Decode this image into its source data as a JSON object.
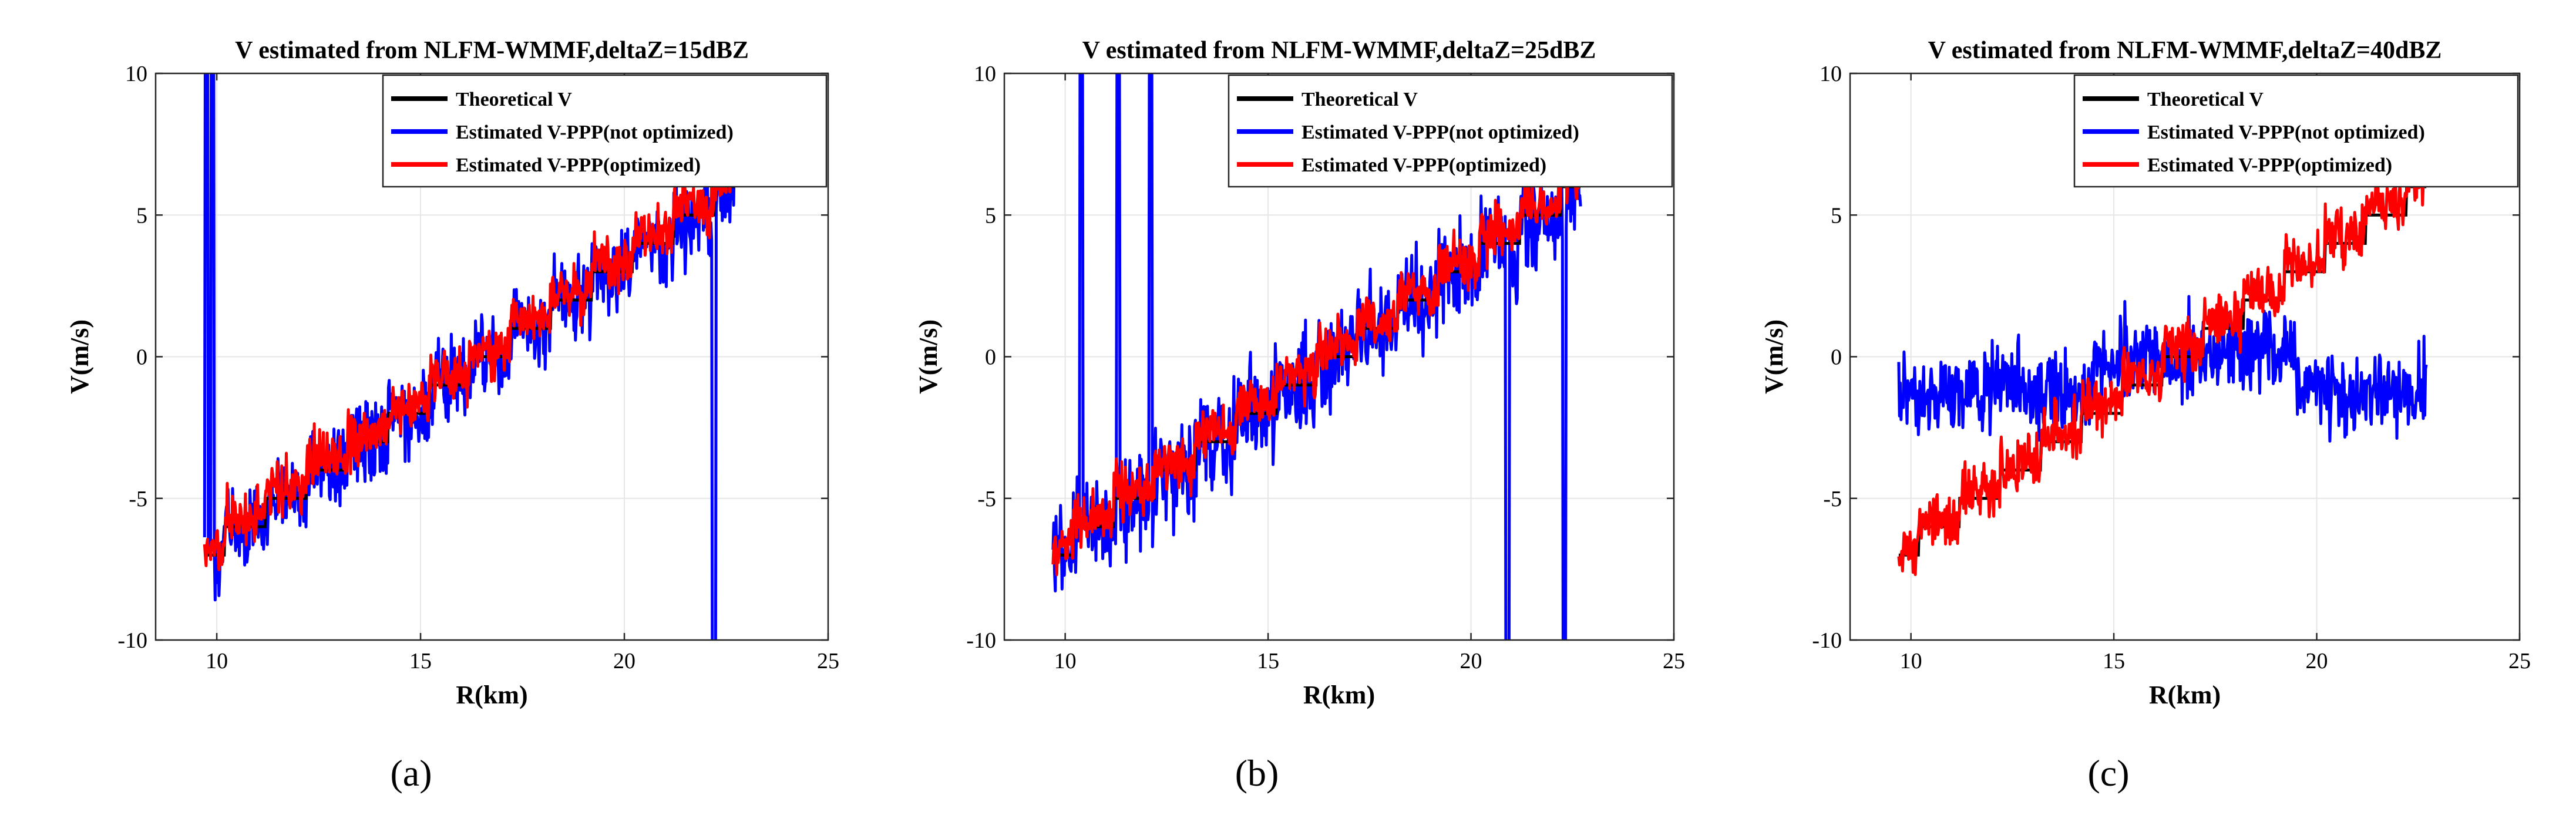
{
  "figure": {
    "panel_labels": [
      "(a)",
      "(b)",
      "(c)"
    ]
  },
  "colors": {
    "theoretical": "#000000",
    "not_optimized": "#0000ff",
    "optimized": "#ff0000"
  },
  "chart_data": [
    {
      "type": "line",
      "title": "V estimated from NLFM-WMMF,deltaZ=15dBZ",
      "xlabel": "R(km)",
      "ylabel": "V(m/s)",
      "xlim": [
        8.5,
        25
      ],
      "ylim": [
        -10,
        10
      ],
      "xticks": [
        10,
        15,
        20,
        25
      ],
      "yticks": [
        -10,
        -5,
        0,
        5,
        10
      ],
      "grid": true,
      "legend_position": "top-right",
      "x_range": [
        9.7,
        22.7
      ],
      "series": [
        {
          "name": "Theoretical V",
          "color": "#000000",
          "kind": "staircase",
          "start_value": -7,
          "end_value": 6
        },
        {
          "name": "Estimated V-PPP(not optimized)",
          "color": "#0000ff",
          "kind": "noisy",
          "noise_amplitude": 1.1,
          "bias": "tracks theoretical",
          "spikes": [
            [
              9.75,
              10
            ],
            [
              9.9,
              10
            ],
            [
              22.2,
              -10
            ]
          ]
        },
        {
          "name": "Estimated V-PPP(optimized)",
          "color": "#ff0000",
          "kind": "noisy",
          "noise_amplitude": 0.7,
          "bias": "tracks theoretical"
        }
      ]
    },
    {
      "type": "line",
      "title": "V estimated from NLFM-WMMF,deltaZ=25dBZ",
      "xlabel": "R(km)",
      "ylabel": "V(m/s)",
      "xlim": [
        8.5,
        25
      ],
      "ylim": [
        -10,
        10
      ],
      "xticks": [
        10,
        15,
        20,
        25
      ],
      "yticks": [
        -10,
        -5,
        0,
        5,
        10
      ],
      "grid": true,
      "legend_position": "top-right",
      "x_range": [
        9.7,
        22.7
      ],
      "series": [
        {
          "name": "Theoretical V",
          "color": "#000000",
          "kind": "staircase",
          "start_value": -7,
          "end_value": 6
        },
        {
          "name": "Estimated V-PPP(not optimized)",
          "color": "#0000ff",
          "kind": "noisy",
          "noise_amplitude": 1.3,
          "bias": "tracks theoretical",
          "spikes": [
            [
              10.4,
              10
            ],
            [
              11.3,
              10
            ],
            [
              12.1,
              10
            ],
            [
              20.9,
              -10
            ],
            [
              22.3,
              -10
            ]
          ]
        },
        {
          "name": "Estimated V-PPP(optimized)",
          "color": "#ff0000",
          "kind": "noisy",
          "noise_amplitude": 0.7,
          "bias": "tracks theoretical"
        }
      ]
    },
    {
      "type": "line",
      "title": "V estimated from NLFM-WMMF,deltaZ=40dBZ",
      "xlabel": "R(km)",
      "ylabel": "V(m/s)",
      "xlim": [
        8.5,
        25
      ],
      "ylim": [
        -10,
        10
      ],
      "xticks": [
        10,
        15,
        20,
        25
      ],
      "yticks": [
        -10,
        -5,
        0,
        5,
        10
      ],
      "grid": true,
      "legend_position": "top-right",
      "x_range": [
        9.7,
        22.7
      ],
      "series": [
        {
          "name": "Theoretical V",
          "color": "#000000",
          "kind": "staircase",
          "start_value": -7,
          "end_value": 6
        },
        {
          "name": "Estimated V-PPP(not optimized)",
          "color": "#0000ff",
          "kind": "noisy",
          "noise_amplitude": 1.0,
          "bias": "flat around -1 with mid-range rise toward theoretical",
          "spikes": []
        },
        {
          "name": "Estimated V-PPP(optimized)",
          "color": "#ff0000",
          "kind": "noisy",
          "noise_amplitude": 0.8,
          "bias": "tracks theoretical"
        }
      ]
    }
  ]
}
